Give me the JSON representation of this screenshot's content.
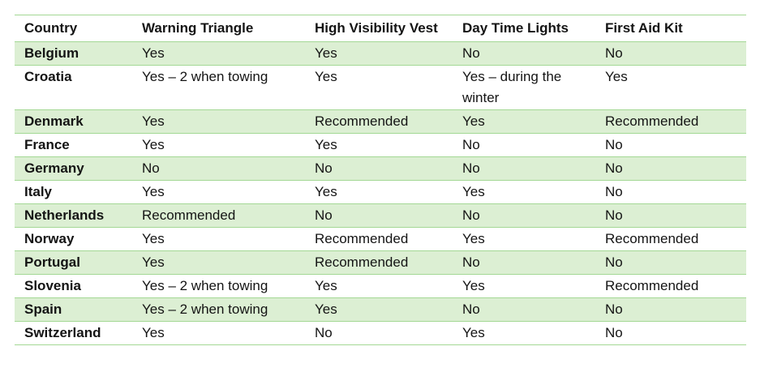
{
  "chart_data": {
    "type": "table",
    "columns": [
      "Country",
      "Warning Triangle",
      "High Visibility Vest",
      "Day Time Lights",
      "First Aid Kit"
    ],
    "rows": [
      {
        "country": "Belgium",
        "warning_triangle": "Yes",
        "high_visibility_vest": "Yes",
        "day_time_lights": "No",
        "first_aid_kit": "No"
      },
      {
        "country": "Croatia",
        "warning_triangle": "Yes – 2 when towing",
        "high_visibility_vest": "Yes",
        "day_time_lights": "Yes – during the winter",
        "first_aid_kit": "Yes"
      },
      {
        "country": "Denmark",
        "warning_triangle": "Yes",
        "high_visibility_vest": "Recommended",
        "day_time_lights": "Yes",
        "first_aid_kit": "Recommended"
      },
      {
        "country": "France",
        "warning_triangle": "Yes",
        "high_visibility_vest": "Yes",
        "day_time_lights": "No",
        "first_aid_kit": "No"
      },
      {
        "country": "Germany",
        "warning_triangle": "No",
        "high_visibility_vest": "No",
        "day_time_lights": "No",
        "first_aid_kit": "No"
      },
      {
        "country": "Italy",
        "warning_triangle": "Yes",
        "high_visibility_vest": "Yes",
        "day_time_lights": "Yes",
        "first_aid_kit": "No"
      },
      {
        "country": "Netherlands",
        "warning_triangle": "Recommended",
        "high_visibility_vest": "No",
        "day_time_lights": "No",
        "first_aid_kit": "No"
      },
      {
        "country": "Norway",
        "warning_triangle": "Yes",
        "high_visibility_vest": "Recommended",
        "day_time_lights": "Yes",
        "first_aid_kit": "Recommended"
      },
      {
        "country": "Portugal",
        "warning_triangle": "Yes",
        "high_visibility_vest": "Recommended",
        "day_time_lights": "No",
        "first_aid_kit": "No"
      },
      {
        "country": "Slovenia",
        "warning_triangle": "Yes – 2 when towing",
        "high_visibility_vest": "Yes",
        "day_time_lights": "Yes",
        "first_aid_kit": "Recommended"
      },
      {
        "country": "Spain",
        "warning_triangle": "Yes – 2 when towing",
        "high_visibility_vest": "Yes",
        "day_time_lights": "No",
        "first_aid_kit": "No"
      },
      {
        "country": "Switzerland",
        "warning_triangle": "Yes",
        "high_visibility_vest": "No",
        "day_time_lights": "Yes",
        "first_aid_kit": "No"
      }
    ],
    "layout_hints": {
      "grid": "horizontal green rules only, no vertical borders",
      "banding": "alternating light-green rows starting with first body row",
      "header": "bold, top-aligned, may wrap to two lines"
    }
  },
  "colors": {
    "row_band": "#dcefd3",
    "rule": "#a3d894",
    "text": "#141414",
    "background": "#ffffff"
  }
}
